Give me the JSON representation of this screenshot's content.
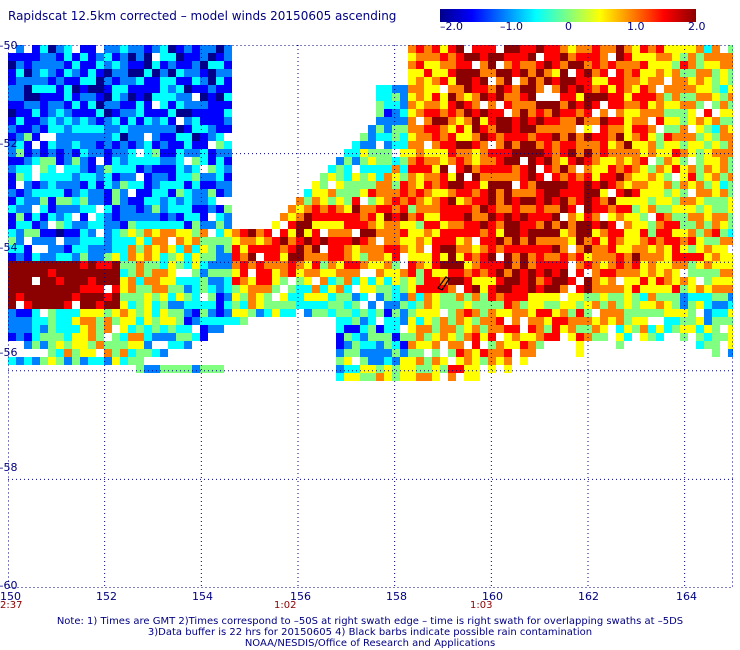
{
  "title": "Rapidscat 12.5km corrected – model winds 20150605 ascending",
  "colorbar": {
    "ticks": [
      "–2.0",
      "–1.0",
      "0",
      "1.0",
      "2.0"
    ],
    "min": -2.0,
    "max": 2.0,
    "colors": [
      "#00008b",
      "#0000ff",
      "#0080ff",
      "#00ffff",
      "#80ff80",
      "#ffff00",
      "#ff8000",
      "#ff0000",
      "#8b0000"
    ]
  },
  "map": {
    "lat_labels": [
      "–50",
      "–52",
      "–54",
      "–56",
      "–58",
      "–60"
    ],
    "lon_labels": [
      "150",
      "152",
      "154",
      "156",
      "158",
      "160",
      "162",
      "164"
    ],
    "lat_range": [
      -60,
      -50
    ],
    "lon_range": [
      150,
      165
    ],
    "grid_color": "#000080"
  },
  "pass_times": [
    {
      "lon": 150,
      "label": "2:37"
    },
    {
      "lon": 156,
      "label": "1:02"
    },
    {
      "lon": 160,
      "label": "1:03"
    }
  ],
  "notes": [
    "Note: 1) Times are GMT 2)Times correspond to –50S at right swath edge – time is right swath for overlapping swaths at –5DS",
    "3)Data buffer is 22 hrs for 20150605 4) Black barbs indicate possible rain contamination",
    "NOAA/NESDIS/Office of Research and Applications"
  ]
}
